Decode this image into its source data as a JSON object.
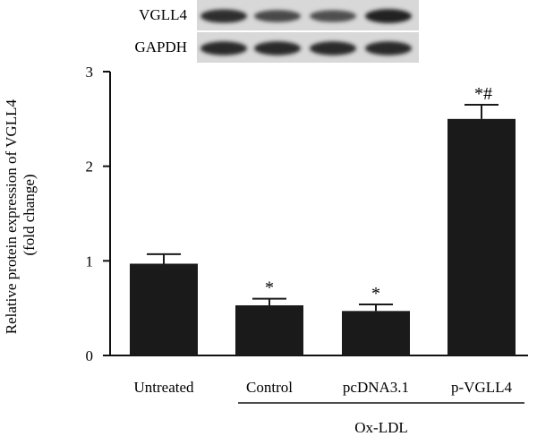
{
  "blot": {
    "rows": [
      {
        "label": "VGLL4",
        "band_intensity": [
          0.85,
          0.6,
          0.55,
          0.95
        ]
      },
      {
        "label": "GAPDH",
        "band_intensity": [
          0.9,
          0.9,
          0.9,
          0.9
        ]
      }
    ]
  },
  "chart_data": {
    "type": "bar",
    "categories": [
      "Untreated",
      "Control",
      "pcDNA3.1",
      "p-VGLL4"
    ],
    "values": [
      0.97,
      0.53,
      0.47,
      2.5
    ],
    "errors": [
      0.1,
      0.07,
      0.07,
      0.15
    ],
    "annotations": [
      "",
      "*",
      "*",
      "*#"
    ],
    "ylabel_line1": "Relative protein expression of VGLL4",
    "ylabel_line2": "(fold change)",
    "xlabel": "",
    "ylim": [
      0,
      3
    ],
    "yticks": [
      0,
      1,
      2,
      3
    ],
    "group_label": "Ox-LDL",
    "group_categories": [
      1,
      3
    ],
    "bar_color": "#1a1a1a",
    "grid": false
  }
}
